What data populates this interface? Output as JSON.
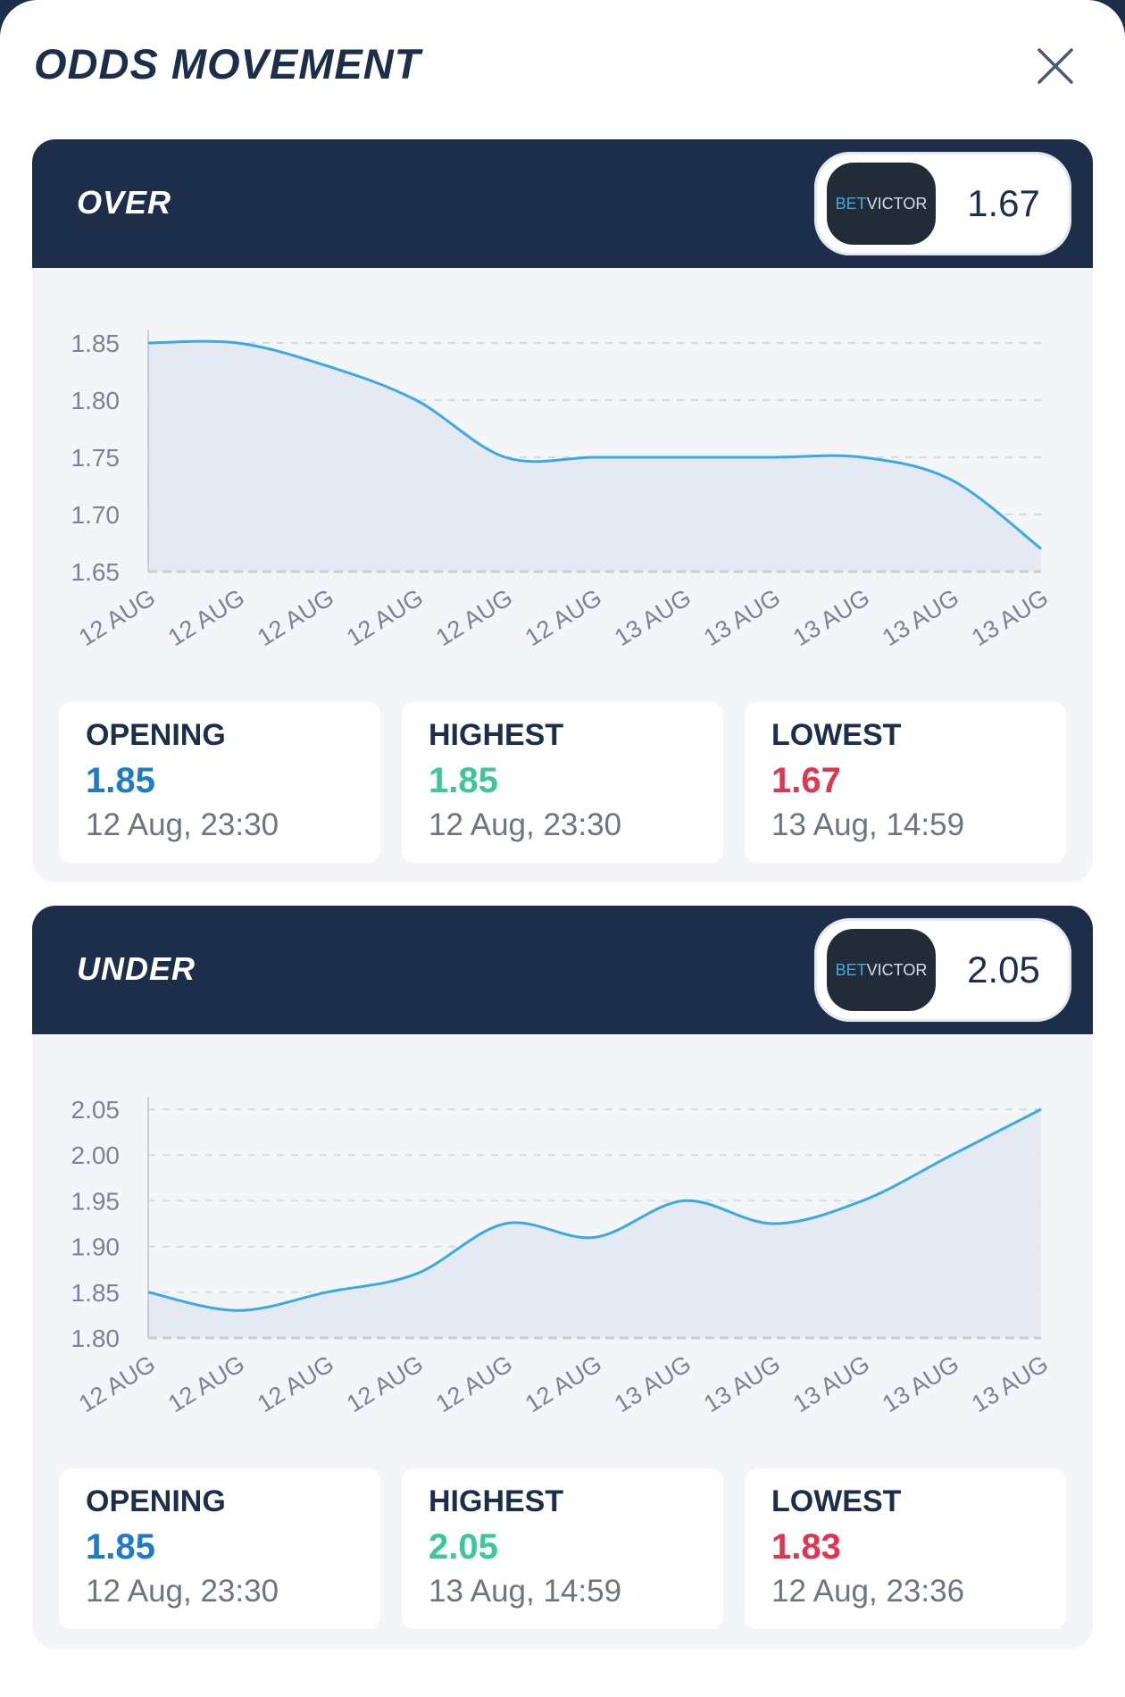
{
  "title": "ODDS MOVEMENT",
  "colors": {
    "header_bg": "#1c2e4a",
    "line": "#3ba9e6",
    "area": "#e4e8f0",
    "opening": "#1e7bc6",
    "highest": "#3cc796",
    "lowest": "#e03450"
  },
  "icons": {
    "close": "close-icon"
  },
  "panels": [
    {
      "label": "OVER",
      "bookmaker": {
        "part1": "BET",
        "part2": "VICTOR"
      },
      "current_odds": "1.67",
      "stats": {
        "opening": {
          "label": "OPENING",
          "value": "1.85",
          "time": "12 Aug, 23:30"
        },
        "highest": {
          "label": "HIGHEST",
          "value": "1.85",
          "time": "12 Aug, 23:30"
        },
        "lowest": {
          "label": "LOWEST",
          "value": "1.67",
          "time": "13 Aug, 14:59"
        }
      }
    },
    {
      "label": "UNDER",
      "bookmaker": {
        "part1": "BET",
        "part2": "VICTOR"
      },
      "current_odds": "2.05",
      "stats": {
        "opening": {
          "label": "OPENING",
          "value": "1.85",
          "time": "12 Aug, 23:30"
        },
        "highest": {
          "label": "HIGHEST",
          "value": "2.05",
          "time": "13 Aug, 14:59"
        },
        "lowest": {
          "label": "LOWEST",
          "value": "1.83",
          "time": "12 Aug, 23:36"
        }
      }
    }
  ],
  "chart_data": [
    {
      "type": "area",
      "title": "",
      "xlabel": "",
      "ylabel": "",
      "categories": [
        "12 AUG",
        "12 AUG",
        "12 AUG",
        "12 AUG",
        "12 AUG",
        "12 AUG",
        "13 AUG",
        "13 AUG",
        "13 AUG",
        "13 AUG",
        "13 AUG"
      ],
      "values": [
        1.85,
        1.85,
        1.83,
        1.8,
        1.75,
        1.75,
        1.75,
        1.75,
        1.75,
        1.73,
        1.67
      ],
      "yticks": [
        "1.65",
        "1.70",
        "1.75",
        "1.80",
        "1.85"
      ],
      "ylim": [
        1.65,
        1.85
      ],
      "grid": true,
      "legend": "none"
    },
    {
      "type": "area",
      "title": "",
      "xlabel": "",
      "ylabel": "",
      "categories": [
        "12 AUG",
        "12 AUG",
        "12 AUG",
        "12 AUG",
        "12 AUG",
        "12 AUG",
        "13 AUG",
        "13 AUG",
        "13 AUG",
        "13 AUG",
        "13 AUG"
      ],
      "values": [
        1.85,
        1.83,
        1.85,
        1.87,
        1.925,
        1.91,
        1.95,
        1.925,
        1.95,
        2.0,
        2.05
      ],
      "yticks": [
        "1.80",
        "1.85",
        "1.90",
        "1.95",
        "2.00",
        "2.05"
      ],
      "ylim": [
        1.8,
        2.05
      ],
      "grid": true,
      "legend": "none"
    }
  ]
}
